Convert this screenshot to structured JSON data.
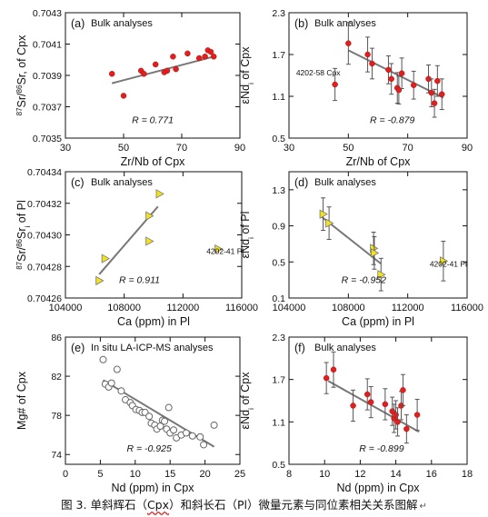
{
  "caption": {
    "prefix": "图 3. 单斜辉石（",
    "cpx": "Cpx",
    "middle": "）和斜长石（Pl）微量元素与同位素相关关系图解",
    "mark": "↵"
  },
  "chart_data": [
    {
      "id": "a",
      "type": "scatter",
      "panel_label": "(a)",
      "title": "Bulk analyses",
      "xlabel": "Zr/Nb of Cpx",
      "ylabel_parts": [
        "87",
        "Sr/",
        "86",
        "Sr, of Cpx"
      ],
      "xlim": [
        30,
        90
      ],
      "ylim": [
        0.7035,
        0.7043
      ],
      "xticks": [
        30,
        50,
        70,
        90
      ],
      "yticks": [
        0.7035,
        0.7037,
        0.7039,
        0.7041,
        0.7043
      ],
      "ytick_labels": [
        "0.7035",
        "0.7037",
        "0.7039",
        "0.7041",
        "0.7043"
      ],
      "marker": "red-dot",
      "points": [
        [
          46,
          0.70391
        ],
        [
          50,
          0.70377
        ],
        [
          56,
          0.70393
        ],
        [
          57,
          0.70391
        ],
        [
          61,
          0.70397
        ],
        [
          64,
          0.70392
        ],
        [
          65,
          0.70393
        ],
        [
          67,
          0.70402
        ],
        [
          68,
          0.70394
        ],
        [
          72,
          0.70404
        ],
        [
          76,
          0.70401
        ],
        [
          78,
          0.70402
        ],
        [
          79,
          0.70406
        ],
        [
          80,
          0.70405
        ],
        [
          81,
          0.70402
        ]
      ],
      "fit": [
        [
          46,
          0.70385
        ],
        [
          81,
          0.70402
        ]
      ],
      "stat": "R = 0.771"
    },
    {
      "id": "b",
      "type": "scatter",
      "panel_label": "(b)",
      "title": "Bulk analyses",
      "xlabel": "Zr/Nb of Cpx",
      "ylabel_parts": [
        "εNd",
        "i",
        " of Cpx"
      ],
      "xlim": [
        30,
        90
      ],
      "ylim": [
        0.5,
        2.3
      ],
      "xticks": [
        30,
        50,
        70,
        90
      ],
      "yticks": [
        0.5,
        1.1,
        1.7,
        2.3
      ],
      "ytick_labels": [
        "0.5",
        "1.1",
        "1.7",
        "2.3"
      ],
      "marker": "red-dot-errorbar",
      "points": [
        [
          45.5,
          1.27,
          0.23
        ],
        [
          50,
          1.86,
          0.3
        ],
        [
          56.5,
          1.7,
          0.25
        ],
        [
          58,
          1.57,
          0.22
        ],
        [
          63.5,
          1.48,
          0.2
        ],
        [
          64.5,
          1.35,
          0.22
        ],
        [
          66.5,
          1.22,
          0.22
        ],
        [
          67,
          1.19,
          0.2
        ],
        [
          68,
          1.43,
          0.22
        ],
        [
          72,
          1.26,
          0.2
        ],
        [
          77,
          1.35,
          0.2
        ],
        [
          78,
          1.15,
          0.2
        ],
        [
          79,
          1.0,
          0.2
        ],
        [
          80,
          1.32,
          0.22
        ],
        [
          81.5,
          1.13,
          0.22
        ]
      ],
      "fit": [
        [
          50,
          1.76
        ],
        [
          82,
          1.08
        ]
      ],
      "annotation": "4202-58 Cpx",
      "stat": "R = -0.879"
    },
    {
      "id": "c",
      "type": "scatter",
      "panel_label": "(c)",
      "title": "Bulk analyses",
      "xlabel": "Ca (ppm) in Pl",
      "ylabel_parts": [
        "87",
        "Sr/",
        "86",
        "Sr",
        "i",
        " of Pl"
      ],
      "xlim": [
        104000,
        116000
      ],
      "ylim": [
        0.70426,
        0.70434
      ],
      "xticks": [
        104000,
        108000,
        112000,
        116000
      ],
      "yticks": [
        0.70426,
        0.70428,
        0.7043,
        0.70432,
        0.70434
      ],
      "ytick_labels": [
        "0.70426",
        "0.70428",
        "0.70430",
        "0.70432",
        "0.70434"
      ],
      "marker": "yellow-triangle",
      "points": [
        [
          106300,
          0.704271
        ],
        [
          106700,
          0.704285
        ],
        [
          109700,
          0.704296
        ],
        [
          109700,
          0.704312
        ],
        [
          110400,
          0.704326
        ],
        [
          114400,
          0.704291
        ]
      ],
      "fit": [
        [
          106300,
          0.704275
        ],
        [
          110300,
          0.704318
        ]
      ],
      "annotation": "4202-41 Pl",
      "stat": "R = 0.911"
    },
    {
      "id": "d",
      "type": "scatter",
      "panel_label": "(d)",
      "title": "Bulk analyses",
      "xlabel": "Ca (ppm) in Pl",
      "ylabel_parts": [
        "εNd",
        "i",
        " of Pl"
      ],
      "xlim": [
        104000,
        116000
      ],
      "ylim": [
        0.1,
        1.5
      ],
      "xticks": [
        104000,
        108000,
        112000,
        116000
      ],
      "yticks": [
        0.1,
        0.5,
        0.9,
        1.3
      ],
      "ytick_labels": [
        "0.1",
        "0.5",
        "0.9",
        "1.3"
      ],
      "marker": "yellow-triangle-errorbar",
      "points": [
        [
          106300,
          1.03,
          0.18
        ],
        [
          106700,
          0.93,
          0.18
        ],
        [
          109700,
          0.65,
          0.18
        ],
        [
          109750,
          0.6,
          0.18
        ],
        [
          110200,
          0.36,
          0.18
        ],
        [
          114400,
          0.51,
          0.22
        ]
      ],
      "fit": [
        [
          106200,
          1.0
        ],
        [
          110200,
          0.48
        ]
      ],
      "annotation": "4202-41 Pl",
      "stat": "R = -0.952"
    },
    {
      "id": "e",
      "type": "scatter",
      "panel_label": "(e)",
      "title": "In situ LA-ICP-MS analyses",
      "xlabel": "Nd (ppm) in Cpx",
      "ylabel_parts": [
        "Mg# of Cpx"
      ],
      "xlim": [
        0,
        25
      ],
      "ylim": [
        73,
        86
      ],
      "xticks": [
        0,
        5,
        10,
        15,
        20,
        25
      ],
      "yticks": [
        74,
        78,
        82,
        86
      ],
      "ytick_labels": [
        "74",
        "78",
        "82",
        "86"
      ],
      "marker": "open-circle",
      "points": [
        [
          5.4,
          83.7
        ],
        [
          5.7,
          81.2
        ],
        [
          6.2,
          80.9
        ],
        [
          6.6,
          81.3
        ],
        [
          7.4,
          82.7
        ],
        [
          8.0,
          80.5
        ],
        [
          8.6,
          79.6
        ],
        [
          9.3,
          79.3
        ],
        [
          9.6,
          79.0
        ],
        [
          10.1,
          78.6
        ],
        [
          10.6,
          78.5
        ],
        [
          11.0,
          78.3
        ],
        [
          11.4,
          78.3
        ],
        [
          12.0,
          77.9
        ],
        [
          12.3,
          77.2
        ],
        [
          12.8,
          77.0
        ],
        [
          13.1,
          76.6
        ],
        [
          13.6,
          76.9
        ],
        [
          13.9,
          77.5
        ],
        [
          14.2,
          77.4
        ],
        [
          14.5,
          76.6
        ],
        [
          14.8,
          78.8
        ],
        [
          15.0,
          76.2
        ],
        [
          15.5,
          76.5
        ],
        [
          15.9,
          75.7
        ],
        [
          16.6,
          76.0
        ],
        [
          17.3,
          76.2
        ],
        [
          18.2,
          75.9
        ],
        [
          19.3,
          75.8
        ],
        [
          19.8,
          75.0
        ],
        [
          21.3,
          77.0
        ]
      ],
      "fit": [
        [
          5.4,
          81.6
        ],
        [
          21.3,
          74.8
        ]
      ],
      "stat": "R = -0.925"
    },
    {
      "id": "f",
      "type": "scatter",
      "panel_label": "(f)",
      "title": "Bulk analyses",
      "xlabel": "Nd (ppm) in Cpx",
      "ylabel_parts": [
        "εNd",
        "i",
        " of Cpx"
      ],
      "xlim": [
        8,
        18
      ],
      "ylim": [
        0.5,
        2.3
      ],
      "xticks": [
        8,
        10,
        12,
        14,
        16,
        18
      ],
      "yticks": [
        0.5,
        1.1,
        1.7,
        2.3
      ],
      "ytick_labels": [
        "0.5",
        "1.1",
        "1.7",
        "2.3"
      ],
      "marker": "red-dot-errorbar",
      "points": [
        [
          10.1,
          1.72,
          0.22
        ],
        [
          10.5,
          1.84,
          0.25
        ],
        [
          11.6,
          1.33,
          0.22
        ],
        [
          12.4,
          1.49,
          0.22
        ],
        [
          12.6,
          1.38,
          0.22
        ],
        [
          13.4,
          1.35,
          0.22
        ],
        [
          13.8,
          1.25,
          0.2
        ],
        [
          13.9,
          1.15,
          0.2
        ],
        [
          14.0,
          1.2,
          0.2
        ],
        [
          14.1,
          1.1,
          0.2
        ],
        [
          14.3,
          1.33,
          0.2
        ],
        [
          14.4,
          1.55,
          0.22
        ],
        [
          14.6,
          1.0,
          0.2
        ],
        [
          15.2,
          1.2,
          0.22
        ]
      ],
      "fit": [
        [
          10.2,
          1.68
        ],
        [
          15.3,
          0.96
        ]
      ],
      "stat": "R = -0.899"
    }
  ]
}
